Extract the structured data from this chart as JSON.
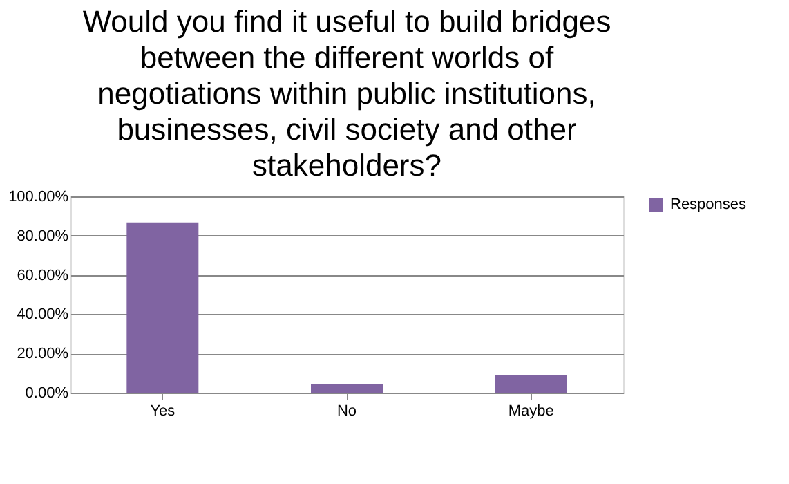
{
  "chart_data": {
    "type": "bar",
    "title": "Would you find it useful to build bridges between the different worlds of negotiations within public institutions, businesses, civil society and other stakeholders?",
    "categories": [
      "Yes",
      "No",
      "Maybe"
    ],
    "series": [
      {
        "name": "Responses",
        "color": "#8064a2",
        "values": [
          86.7,
          4.4,
          8.9
        ]
      }
    ],
    "ylim": [
      0,
      100
    ],
    "yticks": [
      {
        "value": 0,
        "label": "0.00%"
      },
      {
        "value": 20,
        "label": "20.00%"
      },
      {
        "value": 40,
        "label": "40.00%"
      },
      {
        "value": 60,
        "label": "60.00%"
      },
      {
        "value": 80,
        "label": "80.00%"
      },
      {
        "value": 100,
        "label": "100.00%"
      }
    ],
    "grid": "y",
    "legend": "right"
  }
}
